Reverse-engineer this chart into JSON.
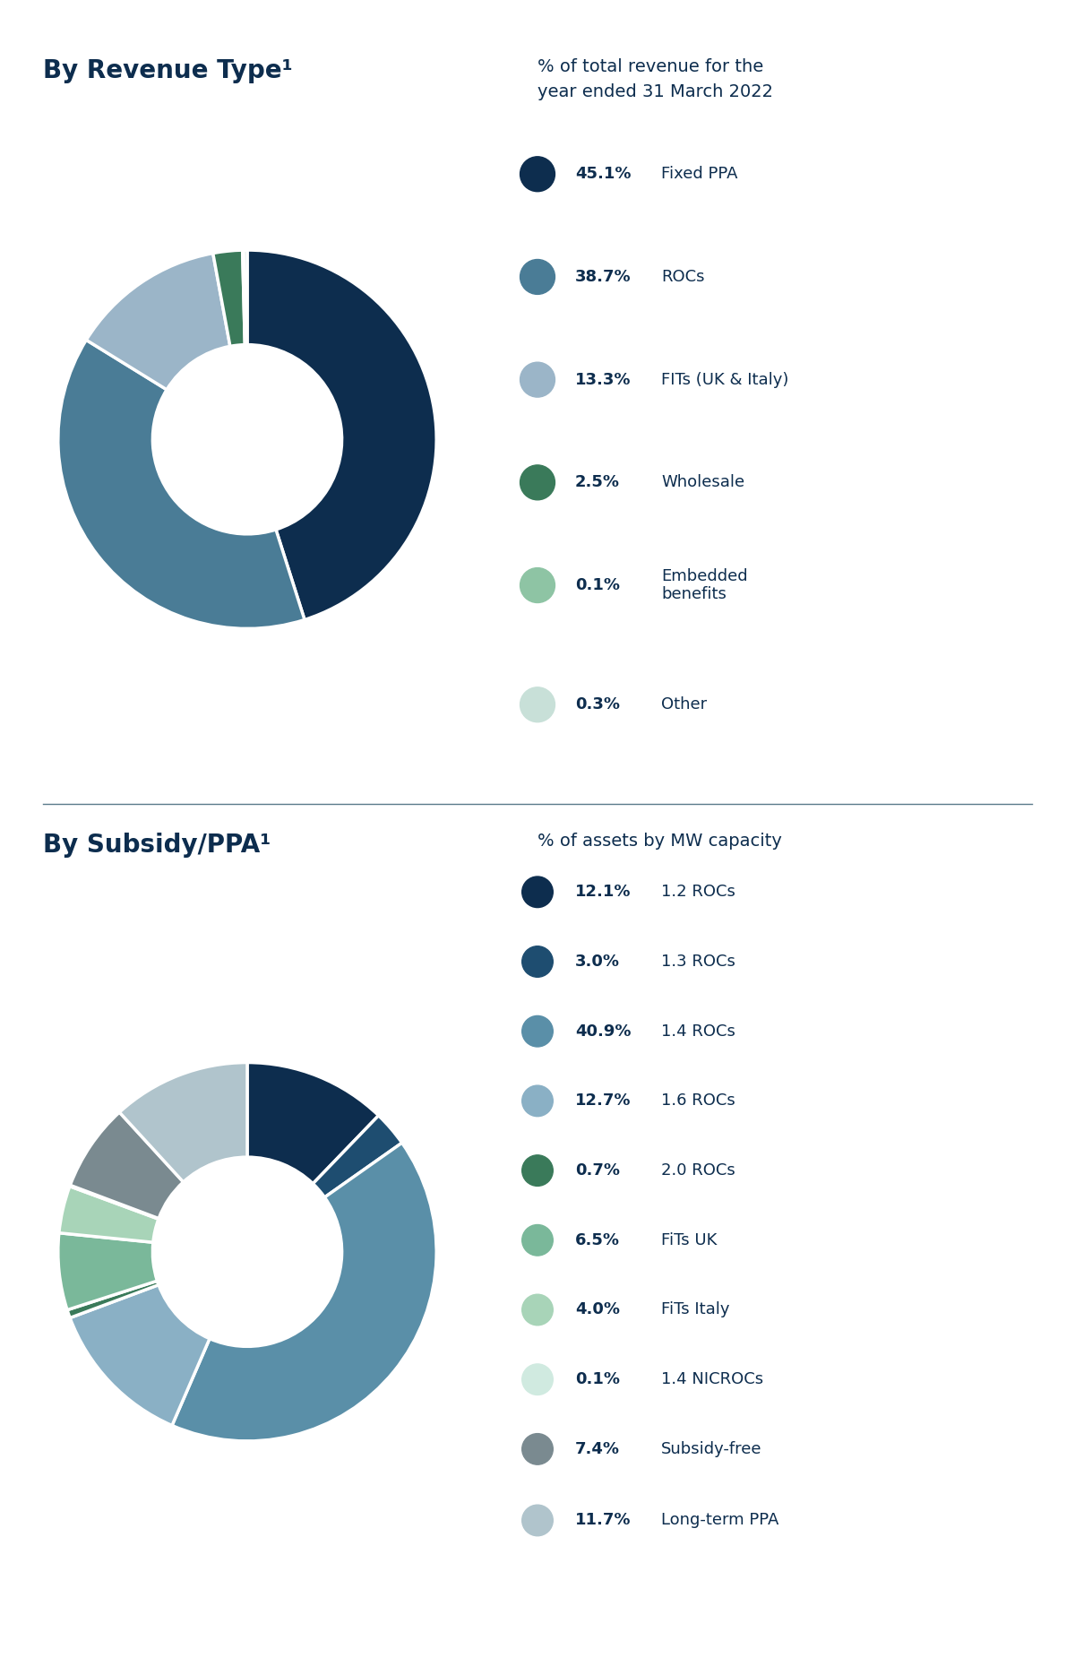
{
  "chart1": {
    "title": "By Revenue Type¹",
    "subtitle": "% of total revenue for the\nyear ended 31 March 2022",
    "values": [
      45.1,
      38.7,
      13.3,
      2.5,
      0.1,
      0.3
    ],
    "colors": [
      "#0d2d4e",
      "#4a7c96",
      "#9bb5c8",
      "#3a7a5a",
      "#8ec4a4",
      "#c8e0d8"
    ],
    "legend_labels": [
      "Fixed PPA",
      "ROCs",
      "FITs (UK & Italy)",
      "Wholesale",
      "Embedded\nbenefits",
      "Other"
    ],
    "legend_pcts": [
      "45.1%",
      "38.7%",
      "13.3%",
      "2.5%",
      "0.1%",
      "0.3%"
    ]
  },
  "chart2": {
    "title": "By Subsidy/PPA¹",
    "subtitle": "% of assets by MW capacity",
    "values": [
      12.1,
      3.0,
      40.9,
      12.7,
      0.7,
      6.5,
      4.0,
      0.1,
      7.4,
      11.7
    ],
    "colors": [
      "#0d2d4e",
      "#1e4d70",
      "#5a8fa8",
      "#8ab0c5",
      "#3a7a5a",
      "#7ab89a",
      "#a8d4b8",
      "#d0eae0",
      "#7a8a90",
      "#b0c4cc"
    ],
    "legend_labels": [
      "1.2 ROCs",
      "1.3 ROCs",
      "1.4 ROCs",
      "1.6 ROCs",
      "2.0 ROCs",
      "FiTs UK",
      "FiTs Italy",
      "1.4 NICROCs",
      "Subsidy-free",
      "Long-term PPA"
    ],
    "legend_pcts": [
      "12.1%",
      "3.0%",
      "40.9%",
      "12.7%",
      "0.7%",
      "6.5%",
      "4.0%",
      "0.1%",
      "7.4%",
      "11.7%"
    ]
  },
  "bg_color": "#ffffff",
  "text_color": "#0d2d4e",
  "separator_color": "#5a7a8a",
  "title_fontsize": 20,
  "subtitle_fontsize": 14,
  "legend_fontsize": 13,
  "pct_fontsize": 13
}
